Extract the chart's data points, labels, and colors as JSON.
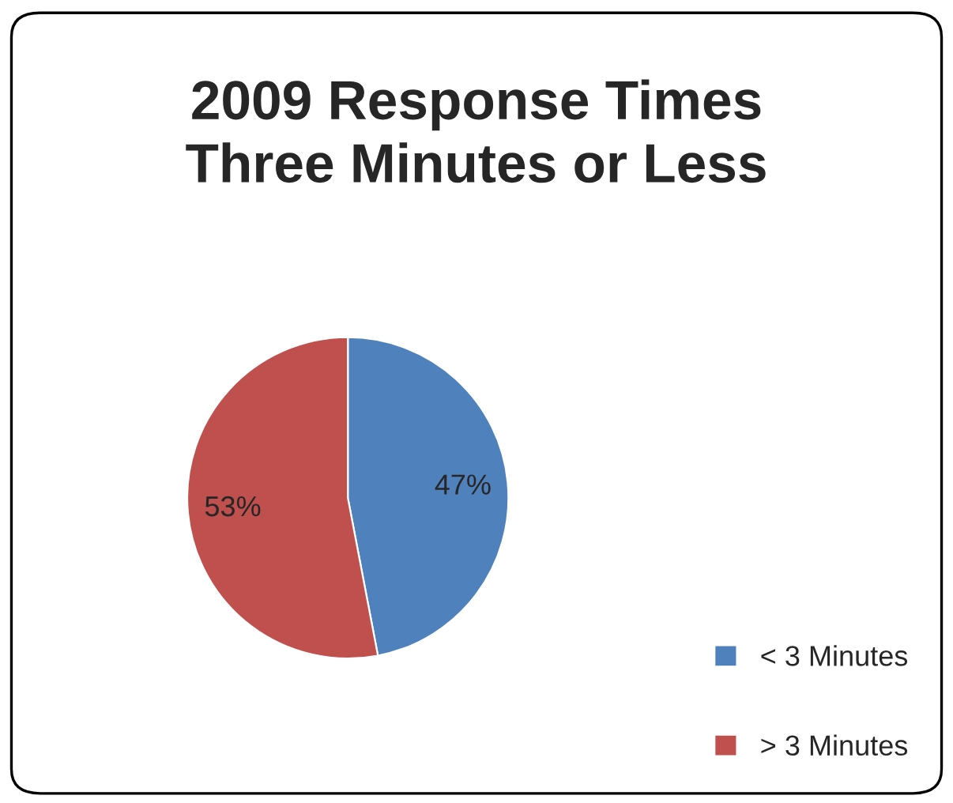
{
  "chart_data": {
    "type": "pie",
    "title": "2009 Response Times\nThree Minutes or Less",
    "categories": [
      "< 3 Minutes",
      "> 3 Minutes"
    ],
    "values": [
      47,
      53
    ],
    "colors": [
      "#4f81bd",
      "#c0504d"
    ],
    "value_labels": [
      "47%",
      "53%"
    ],
    "legend": "bottom right"
  }
}
